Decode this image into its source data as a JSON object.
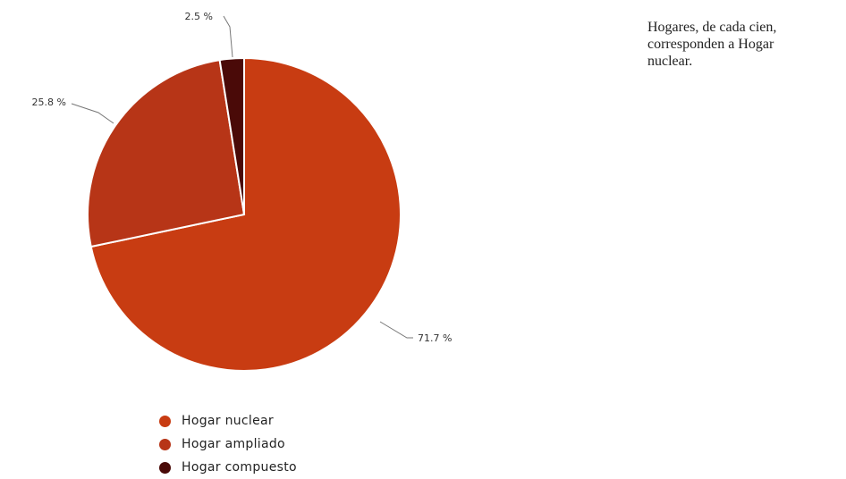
{
  "chart_data": {
    "type": "pie",
    "slices": [
      {
        "label": "Hogar nuclear",
        "value": 71.7,
        "value_label": "71.7 %",
        "color": "#c83c12"
      },
      {
        "label": "Hogar ampliado",
        "value": 25.8,
        "value_label": "25.8 %",
        "color": "#b73517"
      },
      {
        "label": "Hogar compuesto",
        "value": 2.5,
        "value_label": "2.5 %",
        "color": "#4a0a08"
      }
    ],
    "legend": {
      "position": "bottom",
      "items": [
        "Hogar nuclear",
        "Hogar ampliado",
        "Hogar compuesto"
      ]
    }
  },
  "side_text": {
    "lines": [
      "Hogares, de cada cien,",
      "corresponden a Hogar",
      "nuclear."
    ]
  },
  "colors": {
    "nuclear": "#c83c12",
    "ampliado": "#b73517",
    "compuesto": "#4a0a08",
    "label_text": "#333333",
    "leader_line": "#777777"
  }
}
